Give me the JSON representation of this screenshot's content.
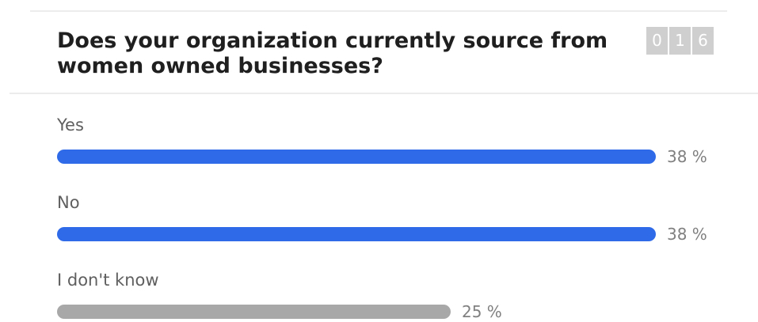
{
  "poll": {
    "question": "Does your organization currently source from women owned businesses?",
    "counter_digits": [
      "0",
      "1",
      "6"
    ]
  },
  "colors": {
    "leading": "#2f6be8",
    "other": "#a8a8a8"
  },
  "chart_data": {
    "type": "bar",
    "orientation": "horizontal",
    "title": "Does your organization currently source from women owned businesses?",
    "categories": [
      "Yes",
      "No",
      "I don't know"
    ],
    "values": [
      38,
      38,
      25
    ],
    "value_labels": [
      "38 %",
      "38 %",
      "25 %"
    ],
    "unit": "%",
    "bar_colors": [
      "#2f6be8",
      "#2f6be8",
      "#a8a8a8"
    ],
    "legend": "none",
    "grid": false
  }
}
